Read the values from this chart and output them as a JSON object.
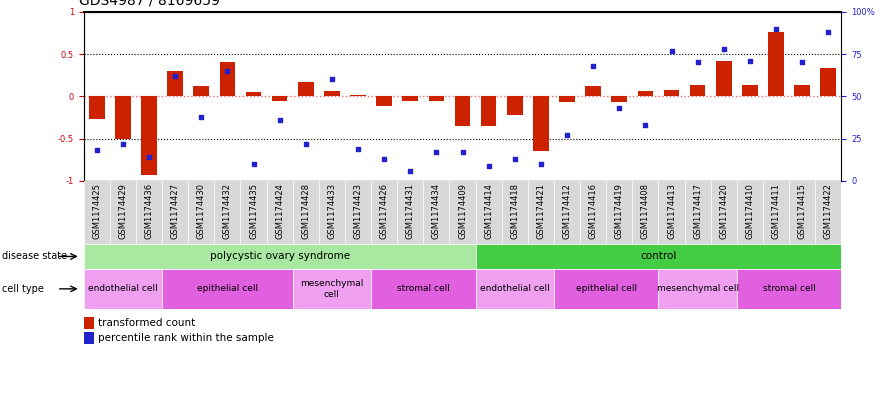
{
  "title": "GDS4987 / 8169659",
  "samples": [
    "GSM1174425",
    "GSM1174429",
    "GSM1174436",
    "GSM1174427",
    "GSM1174430",
    "GSM1174432",
    "GSM1174435",
    "GSM1174424",
    "GSM1174428",
    "GSM1174433",
    "GSM1174423",
    "GSM1174426",
    "GSM1174431",
    "GSM1174434",
    "GSM1174409",
    "GSM1174414",
    "GSM1174418",
    "GSM1174421",
    "GSM1174412",
    "GSM1174416",
    "GSM1174419",
    "GSM1174408",
    "GSM1174413",
    "GSM1174417",
    "GSM1174420",
    "GSM1174410",
    "GSM1174411",
    "GSM1174415",
    "GSM1174422"
  ],
  "transformed_count": [
    -0.27,
    -0.5,
    -0.93,
    0.3,
    0.12,
    0.4,
    0.05,
    -0.06,
    0.17,
    0.06,
    0.02,
    -0.12,
    -0.06,
    -0.06,
    -0.35,
    -0.35,
    -0.22,
    -0.65,
    -0.07,
    0.12,
    -0.07,
    0.06,
    0.08,
    0.13,
    0.42,
    0.13,
    0.76,
    0.13,
    0.33
  ],
  "percentile_rank": [
    18,
    22,
    14,
    62,
    38,
    65,
    10,
    36,
    22,
    60,
    19,
    13,
    6,
    17,
    17,
    9,
    13,
    10,
    27,
    68,
    43,
    33,
    77,
    70,
    78,
    71,
    90,
    70,
    88
  ],
  "disease_state_groups": [
    {
      "label": "polycystic ovary syndrome",
      "start": 0,
      "end": 14,
      "color": "#a8e8a0"
    },
    {
      "label": "control",
      "start": 15,
      "end": 28,
      "color": "#44cc44"
    }
  ],
  "cell_type_groups": [
    {
      "label": "endothelial cell",
      "start": 0,
      "end": 2,
      "color": "#f0a0f0"
    },
    {
      "label": "epithelial cell",
      "start": 3,
      "end": 7,
      "color": "#e060e0"
    },
    {
      "label": "mesenchymal\ncell",
      "start": 8,
      "end": 10,
      "color": "#f0a0f0"
    },
    {
      "label": "stromal cell",
      "start": 11,
      "end": 14,
      "color": "#e060e0"
    },
    {
      "label": "endothelial cell",
      "start": 15,
      "end": 17,
      "color": "#f0a0f0"
    },
    {
      "label": "epithelial cell",
      "start": 18,
      "end": 21,
      "color": "#e060e0"
    },
    {
      "label": "mesenchymal cell",
      "start": 22,
      "end": 24,
      "color": "#f0a0f0"
    },
    {
      "label": "stromal cell",
      "start": 25,
      "end": 28,
      "color": "#e060e0"
    }
  ],
  "bar_color": "#cc2200",
  "dot_color": "#2222cc",
  "yticks_left": [
    -1,
    -0.5,
    0,
    0.5,
    1
  ],
  "yticks_right": [
    0,
    25,
    50,
    75,
    100
  ],
  "hline_zero_color": "#ff6666",
  "hline_ref_color": "#000000",
  "title_fontsize": 10,
  "tick_fontsize": 6.0,
  "legend_fontsize": 7.5,
  "label_fontsize": 8,
  "bg_color": "#ffffff"
}
